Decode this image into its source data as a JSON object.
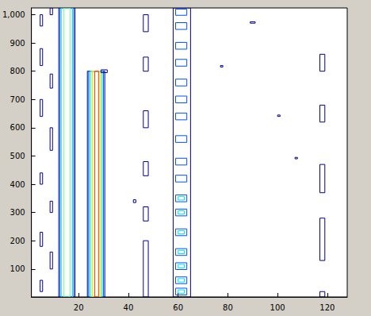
{
  "chart_data": {
    "type": "contour",
    "xlim": [
      1,
      128
    ],
    "ylim": [
      1,
      1024
    ],
    "xticks": [
      20,
      40,
      60,
      80,
      100,
      120
    ],
    "yticks": [
      100,
      200,
      300,
      400,
      500,
      600,
      700,
      800,
      900,
      1000
    ],
    "grid": false,
    "zlim": [
      1,
      6
    ],
    "cells": [
      [
        12,
        18.5,
        1,
        1024,
        1
      ],
      [
        12.5,
        18,
        1,
        1024,
        2
      ],
      [
        13,
        17.5,
        1,
        1024,
        3
      ],
      [
        14,
        16.5,
        1,
        1024,
        4
      ],
      [
        23.5,
        30.5,
        1,
        800,
        1
      ],
      [
        24,
        30,
        1,
        800,
        2
      ],
      [
        24.5,
        29.5,
        1,
        800,
        3
      ],
      [
        25,
        29,
        1,
        800,
        4
      ],
      [
        25.5,
        28.5,
        1,
        800,
        5
      ],
      [
        26.5,
        28,
        1,
        800,
        6
      ],
      [
        29,
        31.5,
        795,
        805,
        1
      ],
      [
        58,
        65,
        1,
        1024,
        1
      ],
      [
        59,
        63.5,
        8,
        32,
        2
      ],
      [
        60,
        62.5,
        14,
        26,
        3
      ],
      [
        59,
        63.5,
        48,
        72,
        2
      ],
      [
        60,
        62.5,
        54,
        66,
        3
      ],
      [
        59,
        63.5,
        98,
        122,
        2
      ],
      [
        60,
        62.5,
        104,
        116,
        3
      ],
      [
        59,
        63.5,
        148,
        172,
        2
      ],
      [
        60,
        62.5,
        154,
        166,
        3
      ],
      [
        59,
        63.5,
        218,
        242,
        2
      ],
      [
        60,
        62.5,
        224,
        236,
        3
      ],
      [
        59,
        63.5,
        288,
        312,
        2
      ],
      [
        60,
        62.5,
        294,
        306,
        3
      ],
      [
        59,
        63.5,
        338,
        362,
        2
      ],
      [
        60,
        62.5,
        344,
        356,
        3
      ],
      [
        59,
        63.5,
        408,
        432,
        2
      ],
      [
        59,
        63.5,
        468,
        492,
        2
      ],
      [
        59,
        63.5,
        548,
        572,
        2
      ],
      [
        59,
        63.5,
        628,
        652,
        2
      ],
      [
        59,
        63.5,
        688,
        712,
        2
      ],
      [
        59,
        63.5,
        748,
        772,
        2
      ],
      [
        59,
        63.5,
        818,
        842,
        2
      ],
      [
        59,
        63.5,
        878,
        902,
        2
      ],
      [
        59,
        63.5,
        948,
        972,
        2
      ],
      [
        59,
        63.5,
        998,
        1020,
        2
      ],
      [
        46,
        48,
        1,
        200,
        1
      ],
      [
        46,
        48,
        270,
        320,
        1
      ],
      [
        46,
        48,
        430,
        480,
        1
      ],
      [
        46,
        48,
        600,
        660,
        1
      ],
      [
        46,
        48,
        800,
        850,
        1
      ],
      [
        46,
        48,
        940,
        1000,
        1
      ],
      [
        117,
        119,
        1,
        20,
        1
      ],
      [
        117,
        119,
        130,
        280,
        1
      ],
      [
        117,
        119,
        370,
        470,
        1
      ],
      [
        117,
        119,
        620,
        680,
        1
      ],
      [
        117,
        119,
        800,
        860,
        1
      ],
      [
        4.5,
        5.5,
        20,
        60,
        1
      ],
      [
        4.5,
        5.5,
        180,
        230,
        1
      ],
      [
        4.5,
        5.5,
        400,
        440,
        1
      ],
      [
        4.5,
        5.5,
        640,
        700,
        1
      ],
      [
        4.5,
        5.5,
        820,
        880,
        1
      ],
      [
        4.5,
        5.5,
        960,
        1000,
        1
      ],
      [
        8.5,
        9.5,
        100,
        160,
        1
      ],
      [
        8.5,
        9.5,
        300,
        340,
        1
      ],
      [
        8.5,
        9.5,
        520,
        600,
        1
      ],
      [
        8.5,
        9.5,
        740,
        790,
        1
      ],
      [
        8.5,
        9.5,
        1000,
        1024,
        1
      ],
      [
        42,
        43,
        335,
        345,
        1
      ],
      [
        89,
        91,
        970,
        975,
        1
      ],
      [
        107,
        108,
        490,
        495,
        1
      ],
      [
        77,
        78,
        815,
        820,
        1
      ],
      [
        100,
        101,
        640,
        645,
        1
      ]
    ]
  }
}
